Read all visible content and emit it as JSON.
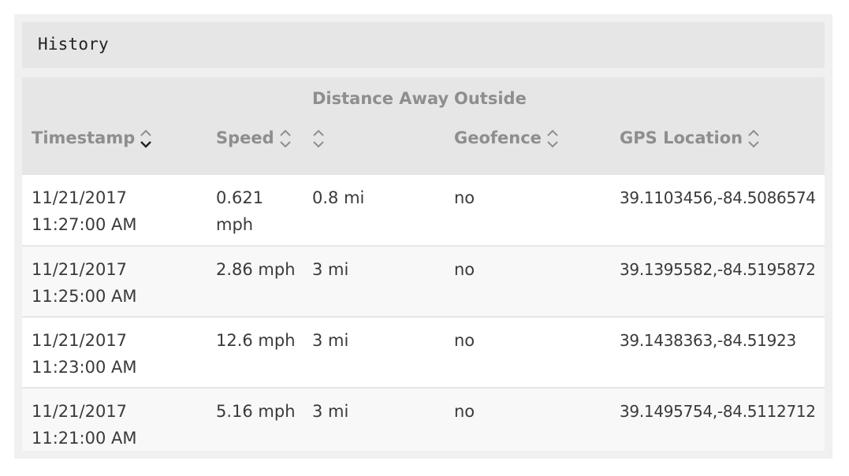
{
  "panel": {
    "title": "History"
  },
  "table": {
    "columns": [
      {
        "line1": "",
        "line2": "Timestamp",
        "sort_active": true
      },
      {
        "line1": "",
        "line2": "Speed",
        "sort_active": false
      },
      {
        "line1": "Distance Away",
        "line2": "",
        "sort_active": false
      },
      {
        "line1": "Outside",
        "line2": "Geofence",
        "sort_active": false
      },
      {
        "line1": "",
        "line2": "GPS Location",
        "sort_active": false
      }
    ],
    "rows": [
      {
        "timestamp": "11/21/2017 11:27:00 AM",
        "speed": "0.621 mph",
        "distance": "0.8 mi",
        "outside": "no",
        "gps": "39.1103456,-84.5086574"
      },
      {
        "timestamp": "11/21/2017 11:25:00 AM",
        "speed": "2.86 mph",
        "distance": "3 mi",
        "outside": "no",
        "gps": "39.1395582,-84.5195872"
      },
      {
        "timestamp": "11/21/2017 11:23:00 AM",
        "speed": "12.6 mph",
        "distance": "3 mi",
        "outside": "no",
        "gps": "39.1438363,-84.51923"
      },
      {
        "timestamp": "11/21/2017 11:21:00 AM",
        "speed": "5.16 mph",
        "distance": "3 mi",
        "outside": "no",
        "gps": "39.1495754,-84.5112712"
      }
    ]
  },
  "icons": {
    "sort": "sort-updown-icon"
  },
  "colors": {
    "header_bg": "#e6e6e6",
    "header_text": "#8e8e8e",
    "body_text": "#3a3a3a",
    "panel_bg": "#f0f0f0"
  }
}
